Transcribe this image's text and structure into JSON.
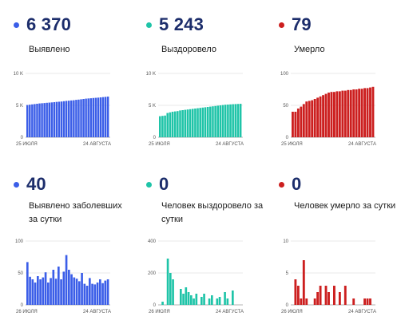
{
  "panels": [
    {
      "key": "p1",
      "value": "6 370",
      "label": "Выявлено",
      "color": "#3b5ee8",
      "chart_data": {
        "type": "bar",
        "yticks": [
          {
            "v": 10000,
            "t": "10 K"
          },
          {
            "v": 5000,
            "t": "5 K"
          },
          {
            "v": 0,
            "t": "0"
          }
        ],
        "ylim": [
          0,
          10000
        ],
        "x_start_label": "25 ИЮЛЯ",
        "x_end_label": "24 АВГУСТА",
        "values": [
          5050,
          5100,
          5150,
          5200,
          5250,
          5300,
          5330,
          5360,
          5400,
          5430,
          5460,
          5500,
          5540,
          5570,
          5600,
          5650,
          5700,
          5730,
          5770,
          5800,
          5860,
          5900,
          5950,
          6000,
          6050,
          6080,
          6110,
          6150,
          6180,
          6210,
          6250,
          6290,
          6330,
          6370
        ]
      }
    },
    {
      "key": "p2",
      "value": "5 243",
      "label": "Выздоровело",
      "color": "#1fc4a8",
      "chart_data": {
        "type": "bar",
        "yticks": [
          {
            "v": 10000,
            "t": "10 K"
          },
          {
            "v": 5000,
            "t": "5 K"
          },
          {
            "v": 0,
            "t": "0"
          }
        ],
        "ylim": [
          0,
          10000
        ],
        "x_start_label": "25 ИЮЛЯ",
        "x_end_label": "24 АВГУСТА",
        "values": [
          3300,
          3350,
          3400,
          3800,
          3900,
          4000,
          4050,
          4100,
          4200,
          4250,
          4300,
          4350,
          4400,
          4450,
          4500,
          4550,
          4600,
          4650,
          4700,
          4750,
          4800,
          4850,
          4900,
          4950,
          5000,
          5050,
          5100,
          5120,
          5150,
          5180,
          5200,
          5220,
          5243
        ]
      }
    },
    {
      "key": "p3",
      "value": "79",
      "label": "Умерло",
      "color": "#cc1f1f",
      "chart_data": {
        "type": "bar",
        "yticks": [
          {
            "v": 100,
            "t": "100"
          },
          {
            "v": 50,
            "t": "50"
          },
          {
            "v": 0,
            "t": "0"
          }
        ],
        "ylim": [
          0,
          100
        ],
        "x_start_label": "25 ИЮЛЯ",
        "x_end_label": "24 АВГУСТА",
        "values": [
          40,
          40,
          45,
          48,
          52,
          56,
          57,
          58,
          60,
          62,
          64,
          66,
          68,
          70,
          71,
          71,
          72,
          72,
          73,
          73,
          74,
          74,
          75,
          75,
          76,
          76,
          77,
          77,
          78,
          79
        ]
      }
    },
    {
      "key": "p4",
      "value": "40",
      "label": "Выявлено заболевших за сутки",
      "color": "#3b5ee8",
      "chart_data": {
        "type": "bar",
        "yticks": [
          {
            "v": 100,
            "t": "100"
          },
          {
            "v": 50,
            "t": "50"
          },
          {
            "v": 0,
            "t": "0"
          }
        ],
        "ylim": [
          0,
          100
        ],
        "x_start_label": "26 ИЮЛЯ",
        "x_end_label": "24 АВГУСТА",
        "values": [
          67,
          44,
          40,
          35,
          45,
          40,
          43,
          51,
          35,
          42,
          55,
          41,
          60,
          40,
          52,
          78,
          55,
          48,
          43,
          41,
          37,
          50,
          33,
          30,
          42,
          33,
          32,
          35,
          40,
          34,
          38,
          40
        ]
      }
    },
    {
      "key": "p5",
      "value": "0",
      "label": "Человек выздоровело за сутки",
      "color": "#1fc4a8",
      "chart_data": {
        "type": "bar",
        "yticks": [
          {
            "v": 400,
            "t": "400"
          },
          {
            "v": 200,
            "t": "200"
          },
          {
            "v": 0,
            "t": "0"
          }
        ],
        "ylim": [
          0,
          400
        ],
        "x_start_label": "26 ИЮЛЯ",
        "x_end_label": "24 АВГУСТА",
        "values": [
          0,
          20,
          0,
          290,
          200,
          160,
          0,
          0,
          100,
          70,
          110,
          80,
          60,
          40,
          70,
          0,
          50,
          70,
          0,
          40,
          60,
          0,
          40,
          50,
          0,
          80,
          40,
          0,
          90,
          0,
          0,
          0
        ]
      }
    },
    {
      "key": "p6",
      "value": "0",
      "label": "Человек умерло за сутки",
      "color": "#cc1f1f",
      "chart_data": {
        "type": "bar",
        "yticks": [
          {
            "v": 10,
            "t": "10"
          },
          {
            "v": 5,
            "t": "5"
          },
          {
            "v": 0,
            "t": "0"
          }
        ],
        "ylim": [
          0,
          10
        ],
        "x_start_label": "26 ИЮЛЯ",
        "x_end_label": "24 АВГУСТА",
        "values": [
          0,
          4,
          3,
          1,
          7,
          1,
          0,
          0,
          1,
          2,
          3,
          0,
          3,
          2,
          0,
          3,
          0,
          2,
          0,
          3,
          0,
          0,
          1,
          0,
          0,
          0,
          1,
          1,
          1,
          0
        ]
      }
    }
  ]
}
